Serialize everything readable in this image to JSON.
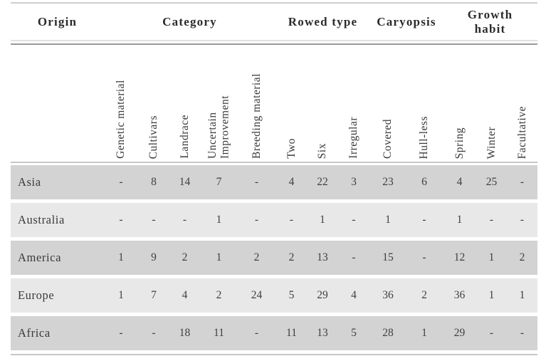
{
  "table": {
    "column_groups": [
      {
        "label": "Origin"
      },
      {
        "label": "Category"
      },
      {
        "label": "Rowed type"
      },
      {
        "label": "Caryopsis"
      },
      {
        "label": "Growth habit"
      }
    ],
    "columns": [
      "Genetic material",
      "Cultivars",
      "Landrace",
      "Uncertain Improvement",
      "Breeding material",
      "Two",
      "Six",
      "Irregular",
      "Covered",
      "Hull-less",
      "Spring",
      "Winter",
      "Facultative"
    ],
    "rows": [
      {
        "origin": "Asia",
        "values": [
          "-",
          "8",
          "14",
          "7",
          "-",
          "4",
          "22",
          "3",
          "23",
          "6",
          "4",
          "25",
          "-"
        ]
      },
      {
        "origin": "Australia",
        "values": [
          "-",
          "-",
          "-",
          "1",
          "-",
          "-",
          "1",
          "-",
          "1",
          "-",
          "1",
          "-",
          "-"
        ]
      },
      {
        "origin": "America",
        "values": [
          "1",
          "9",
          "2",
          "1",
          "2",
          "2",
          "13",
          "-",
          "15",
          "-",
          "12",
          "1",
          "2"
        ]
      },
      {
        "origin": "Europe",
        "values": [
          "1",
          "7",
          "4",
          "2",
          "24",
          "5",
          "29",
          "4",
          "36",
          "2",
          "36",
          "1",
          "1"
        ]
      },
      {
        "origin": "Africa",
        "values": [
          "-",
          "-",
          "18",
          "11",
          "-",
          "11",
          "13",
          "5",
          "28",
          "1",
          "29",
          "-",
          "-"
        ]
      }
    ],
    "colors": {
      "row_dark": "#d3d3d3",
      "row_light": "#e8e8e8",
      "text": "#333333",
      "border_light": "#cfcfcf",
      "border_dark": "#9a9a9a"
    }
  }
}
